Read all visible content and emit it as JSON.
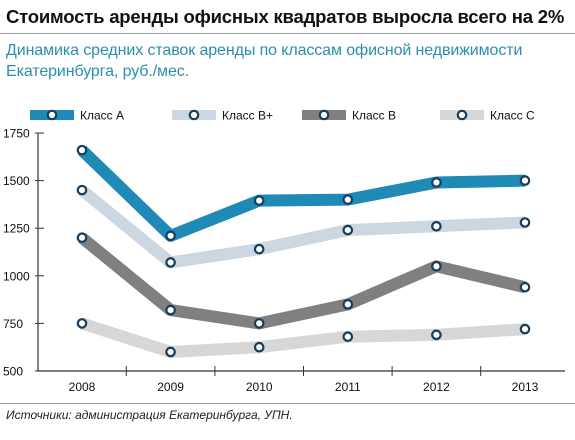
{
  "header": {
    "title": "Стоимость аренды офисных квадратов выросла всего на 2%",
    "subtitle": "Динамика средних ставок аренды по классам офисной недвижимости Екатеринбурга, руб./мес."
  },
  "source": "Источники: администрация Екатеринбурга, УПН.",
  "colors": {
    "class_a": "#1f8ab5",
    "class_bplus": "#ccd7e1",
    "class_b": "#808080",
    "class_c": "#d7d7d7",
    "marker_ring": "#163e5c",
    "axis": "#333333",
    "gridline": "#b3b3b3"
  },
  "chart_data": {
    "type": "line",
    "title": "Динамика средних ставок аренды по классам офисной недвижимости Екатеринбурга, руб./мес.",
    "categories": [
      "2008",
      "2009",
      "2010",
      "2011",
      "2012",
      "2013"
    ],
    "y_ticks": [
      "1750",
      "1500",
      "1250",
      "1000",
      "750",
      "500"
    ],
    "ylim": [
      500,
      1750
    ],
    "grid": false,
    "legend_position": "top",
    "series": [
      {
        "name": "Класс А",
        "values": [
          1660,
          1210,
          1395,
          1400,
          1490,
          1500
        ]
      },
      {
        "name": "Класс В+",
        "values": [
          1450,
          1070,
          1140,
          1240,
          1260,
          1280
        ]
      },
      {
        "name": "Класс В",
        "values": [
          1200,
          820,
          750,
          850,
          1050,
          940
        ]
      },
      {
        "name": "Класс С",
        "values": [
          750,
          600,
          625,
          680,
          690,
          720
        ]
      }
    ]
  }
}
